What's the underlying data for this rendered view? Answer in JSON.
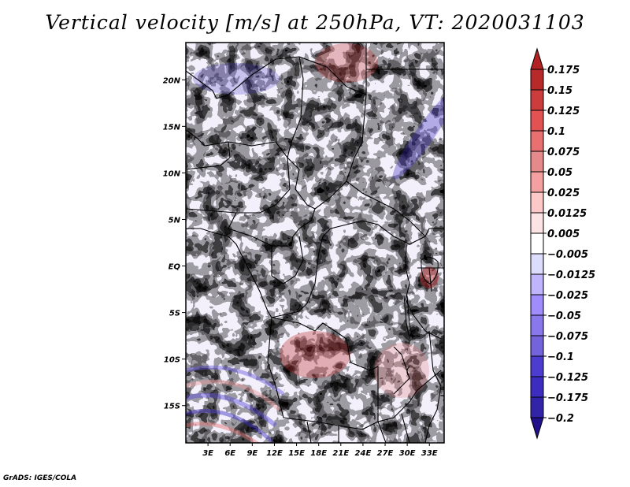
{
  "title": "Vertical velocity [m/s] at 250hPa, VT: 2020031103",
  "footer": "GrADS: IGES/COLA",
  "chart_data": {
    "type": "heatmap",
    "title": "Vertical velocity [m/s] at 250hPa, VT: 2020031103",
    "variable": "Vertical velocity",
    "units": "m/s",
    "level": "250hPa",
    "valid_time": "2020031103",
    "xlabel": "",
    "ylabel": "",
    "lon_range": [
      0,
      35
    ],
    "lat_range": [
      -19,
      24
    ],
    "x_ticks": [
      {
        "value": 3,
        "label": "3E"
      },
      {
        "value": 6,
        "label": "6E"
      },
      {
        "value": 9,
        "label": "9E"
      },
      {
        "value": 12,
        "label": "12E"
      },
      {
        "value": 15,
        "label": "15E"
      },
      {
        "value": 18,
        "label": "18E"
      },
      {
        "value": 21,
        "label": "21E"
      },
      {
        "value": 24,
        "label": "24E"
      },
      {
        "value": 27,
        "label": "27E"
      },
      {
        "value": 30,
        "label": "30E"
      },
      {
        "value": 33,
        "label": "33E"
      }
    ],
    "y_ticks": [
      {
        "value": 20,
        "label": "20N"
      },
      {
        "value": 15,
        "label": "15N"
      },
      {
        "value": 10,
        "label": "10N"
      },
      {
        "value": 5,
        "label": "5N"
      },
      {
        "value": 0,
        "label": "EQ"
      },
      {
        "value": -5,
        "label": "5S"
      },
      {
        "value": -10,
        "label": "10S"
      },
      {
        "value": -15,
        "label": "15S"
      }
    ],
    "colorbar": {
      "position": "right",
      "extend": "both",
      "levels": [
        "0.175",
        "0.15",
        "0.125",
        "0.1",
        "0.075",
        "0.05",
        "0.025",
        "0.0125",
        "0.005",
        "-0.005",
        "-0.0125",
        "-0.025",
        "-0.05",
        "-0.075",
        "-0.1",
        "-0.125",
        "-0.175",
        "-0.2"
      ],
      "colors_top_to_bottom": [
        "#b22222",
        "#b82a2a",
        "#cc3c3c",
        "#e25252",
        "#e87070",
        "#e48a8a",
        "#f4a0a0",
        "#fcc8c8",
        "#fde4e4",
        "#ffffff",
        "#dcdcfc",
        "#c0b4fc",
        "#a08cfc",
        "#8878ec",
        "#7464dc",
        "#4c3cd0",
        "#3c2cc0",
        "#3224a8",
        "#20108c"
      ]
    },
    "features": [
      "country borders",
      "coastlines",
      "lakes"
    ],
    "notable_regions": [
      {
        "description": "strong ascent (dark red) over central Angola / southern DR Congo",
        "approx_lon": [
          15,
          20
        ],
        "approx_lat": [
          -12,
          -8
        ]
      },
      {
        "description": "strong ascent over Lake Victoria",
        "approx_lon": [
          31,
          34
        ],
        "approx_lat": [
          -2,
          1
        ]
      },
      {
        "description": "banded descent (blue) along NE-SW streaks over Sudan/Egypt",
        "approx_lon": [
          26,
          35
        ],
        "approx_lat": [
          12,
          22
        ]
      },
      {
        "description": "wave-like bands over SE Atlantic",
        "approx_lon": [
          0,
          10
        ],
        "approx_lat": [
          -19,
          -10
        ]
      }
    ]
  }
}
